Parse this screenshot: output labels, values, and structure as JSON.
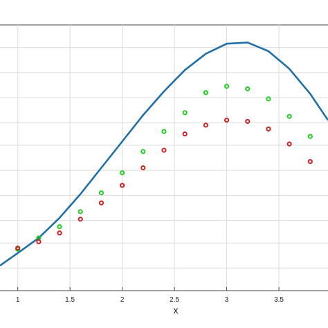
{
  "chart_data": {
    "type": "scatter",
    "title": "",
    "xlabel": "x",
    "ylabel": "",
    "xlim": [
      0.83,
      3.97
    ],
    "ylim": [
      0.0,
      10.6
    ],
    "grid": true,
    "x_ticks": [
      "1",
      "1.5",
      "2",
      "2.5",
      "3",
      "3.5"
    ],
    "x_tick_values": [
      1,
      1.5,
      2,
      2.5,
      3,
      3.5
    ],
    "y_grid_values": [
      0.9,
      1.9,
      2.8,
      3.8,
      4.8,
      5.8,
      6.7,
      7.7,
      8.7,
      9.7
    ],
    "series": [
      {
        "kind": "line",
        "color": "#1f6fa8",
        "points": [
          [
            0.83,
            1.0
          ],
          [
            1.0,
            1.5
          ],
          [
            1.2,
            2.1
          ],
          [
            1.4,
            2.9
          ],
          [
            1.6,
            3.85
          ],
          [
            1.8,
            4.9
          ],
          [
            2.0,
            5.95
          ],
          [
            2.2,
            7.0
          ],
          [
            2.4,
            7.95
          ],
          [
            2.6,
            8.8
          ],
          [
            2.8,
            9.45
          ],
          [
            3.0,
            9.85
          ],
          [
            3.2,
            9.9
          ],
          [
            3.4,
            9.55
          ],
          [
            3.6,
            8.85
          ],
          [
            3.8,
            7.85
          ],
          [
            3.97,
            6.8
          ]
        ]
      },
      {
        "kind": "scatter",
        "color": "#22cc22",
        "marker": "circle",
        "points": [
          [
            1.0,
            1.65
          ],
          [
            1.2,
            2.1
          ],
          [
            1.4,
            2.55
          ],
          [
            1.6,
            3.15
          ],
          [
            1.8,
            3.9
          ],
          [
            2.0,
            4.7
          ],
          [
            2.2,
            5.55
          ],
          [
            2.4,
            6.35
          ],
          [
            2.6,
            7.1
          ],
          [
            2.8,
            7.9
          ],
          [
            3.0,
            8.15
          ],
          [
            3.2,
            8.05
          ],
          [
            3.4,
            7.65
          ],
          [
            3.6,
            6.95
          ],
          [
            3.8,
            6.15
          ]
        ]
      },
      {
        "kind": "scatter",
        "color": "#cc2222",
        "marker": "circle",
        "points": [
          [
            1.0,
            1.7
          ],
          [
            1.2,
            1.95
          ],
          [
            1.4,
            2.3
          ],
          [
            1.6,
            2.85
          ],
          [
            1.8,
            3.5
          ],
          [
            2.0,
            4.2
          ],
          [
            2.2,
            4.9
          ],
          [
            2.4,
            5.6
          ],
          [
            2.6,
            6.25
          ],
          [
            2.8,
            6.6
          ],
          [
            3.0,
            6.8
          ],
          [
            3.2,
            6.75
          ],
          [
            3.4,
            6.45
          ],
          [
            3.6,
            5.85
          ],
          [
            3.8,
            5.15
          ]
        ]
      }
    ]
  }
}
